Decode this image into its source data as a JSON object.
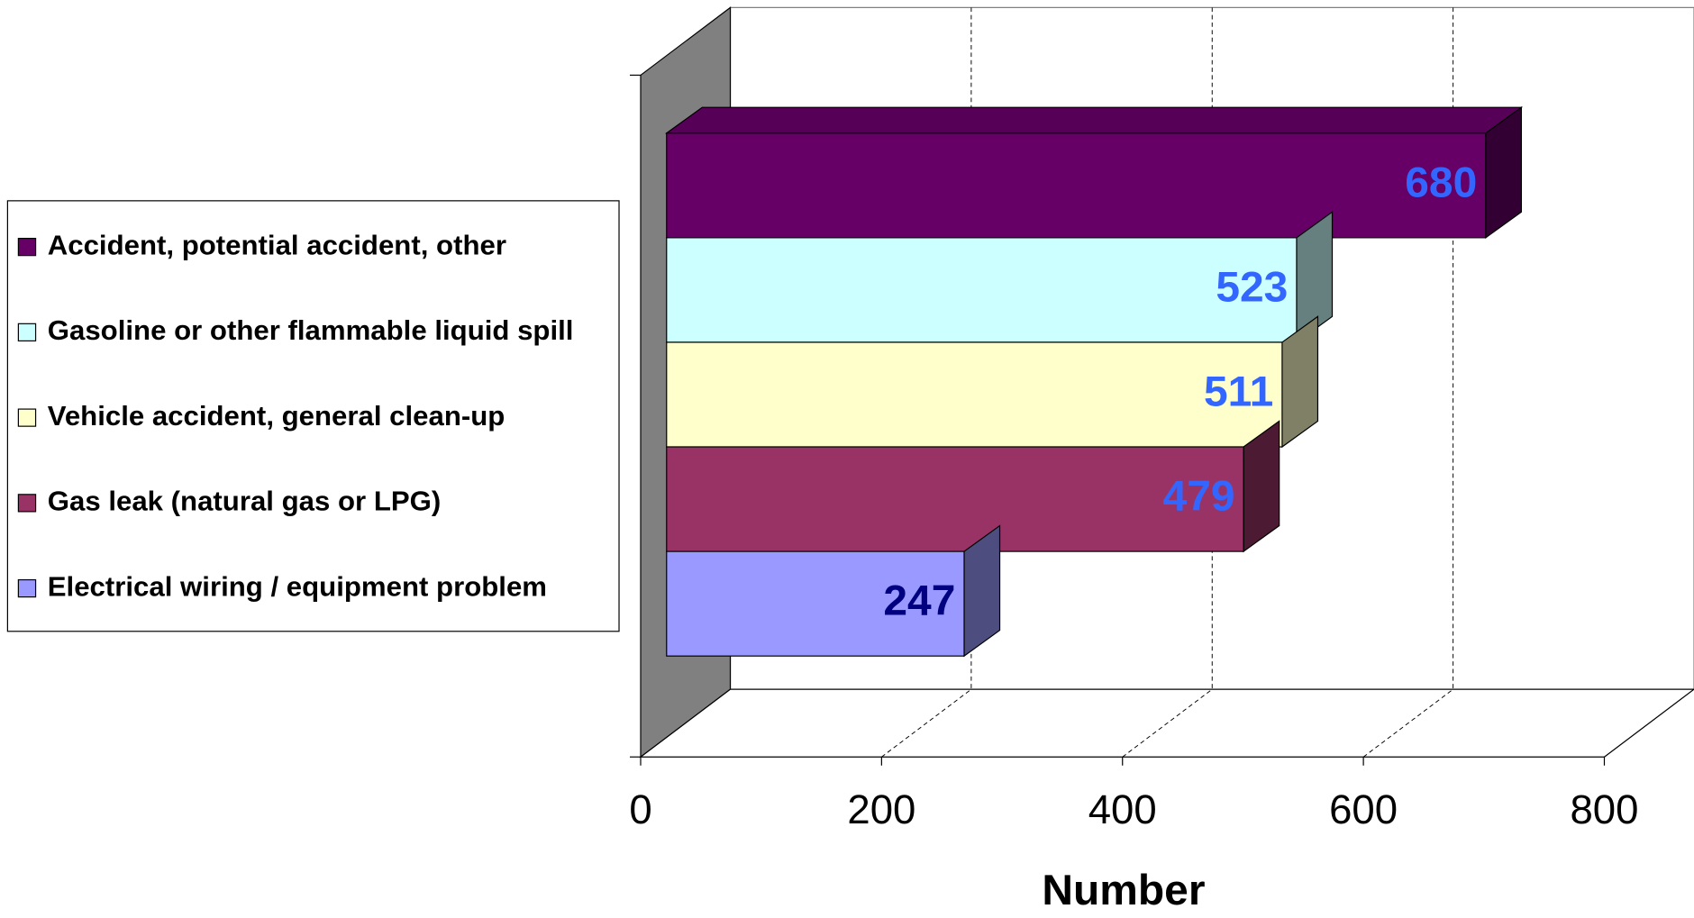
{
  "chart_data": {
    "type": "bar",
    "orientation": "horizontal",
    "categories": [
      "Accident, potential accident, other",
      "Gasoline or other flammable liquid spill",
      "Vehicle accident, general clean-up",
      "Gas leak (natural gas or LPG)",
      "Electrical wiring / equipment problem"
    ],
    "values": [
      680,
      523,
      511,
      479,
      247
    ],
    "colors": [
      "#660066",
      "#ccffff",
      "#ffffcc",
      "#993366",
      "#9999ff"
    ],
    "label_colors": [
      "#3366ff",
      "#3366ff",
      "#3366ff",
      "#3366ff",
      "#000080"
    ],
    "xlim": [
      0,
      800
    ],
    "xticks": [
      0,
      200,
      400,
      600,
      800
    ],
    "x_label": "Number",
    "grid": true,
    "legend": "left"
  }
}
